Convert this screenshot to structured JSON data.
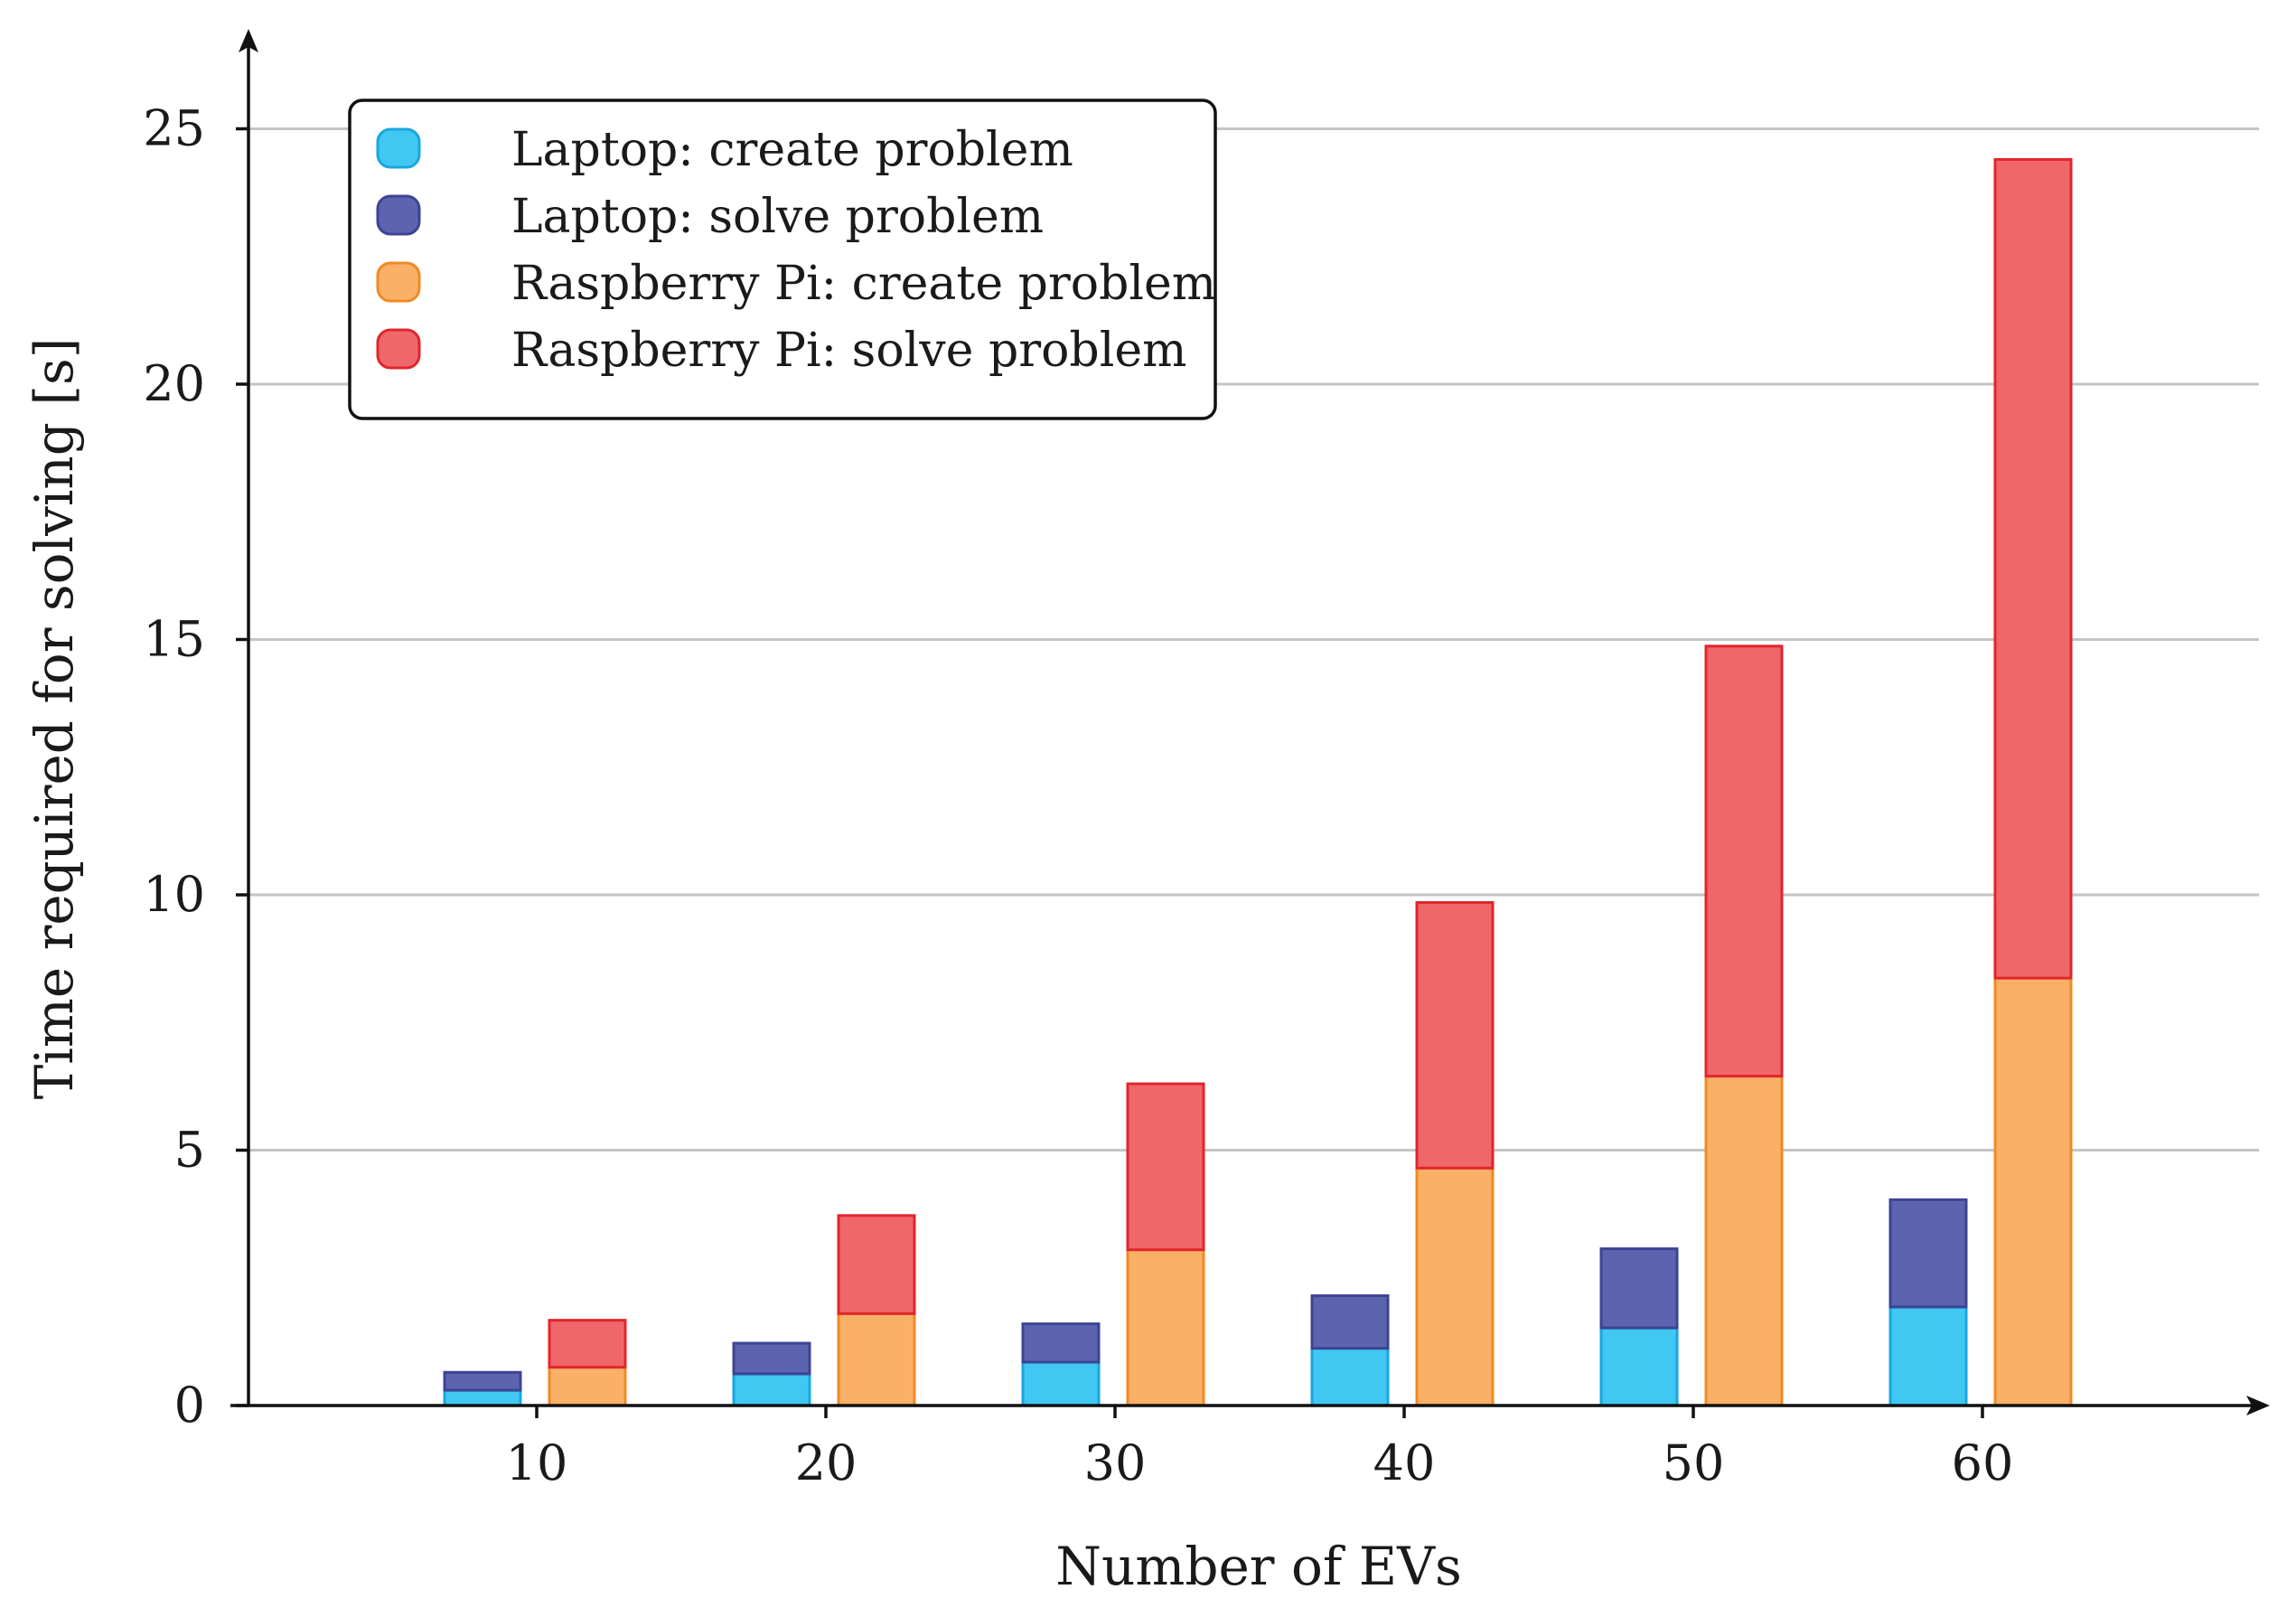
{
  "chart_data": {
    "type": "bar",
    "stacked": true,
    "title": "",
    "xlabel": "Number of EVs",
    "ylabel": "Time required for solving [s]",
    "categories": [
      "10",
      "20",
      "30",
      "40",
      "50",
      "60"
    ],
    "ylim": [
      0,
      27
    ],
    "yticks": [
      0,
      5,
      10,
      15,
      20,
      25
    ],
    "grid": true,
    "legend_position": "top-left",
    "groups": [
      {
        "name": "Laptop",
        "series": [
          {
            "name": "Laptop: create problem",
            "color": "#41c8f2",
            "edge": "#19a6e0",
            "values": [
              0.3,
              0.62,
              0.85,
              1.12,
              1.52,
              1.93
            ]
          },
          {
            "name": "Laptop: solve problem",
            "color": "#5c64b0",
            "edge": "#3c4494",
            "values": [
              0.35,
              0.6,
              0.75,
              1.03,
              1.55,
              2.1
            ]
          }
        ]
      },
      {
        "name": "Raspberry Pi",
        "series": [
          {
            "name": "Raspberry Pi: create problem",
            "color": "#fbb068",
            "edge": "#f08a24",
            "values": [
              0.75,
              1.8,
              3.05,
              4.65,
              6.45,
              8.37
            ]
          },
          {
            "name": "Raspberry Pi: solve problem",
            "color": "#f0676a",
            "edge": "#e0262c",
            "values": [
              0.92,
              1.92,
              3.25,
              5.2,
              8.42,
              16.03
            ]
          }
        ]
      }
    ]
  }
}
